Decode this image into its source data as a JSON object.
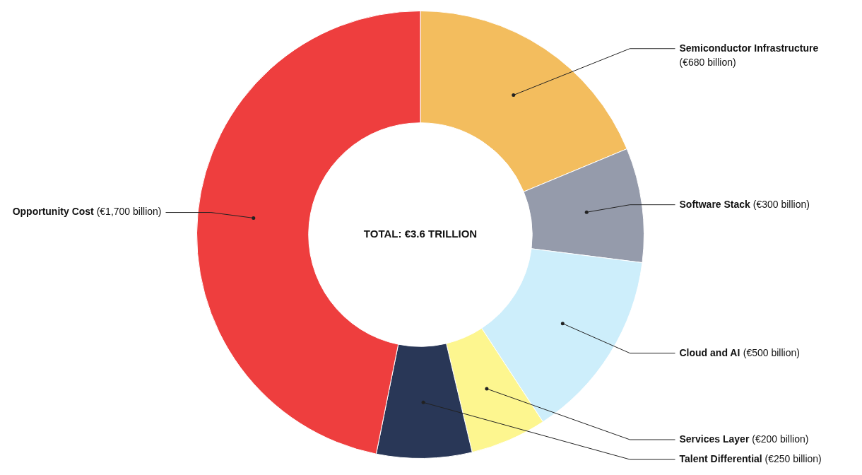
{
  "chart_data": {
    "type": "donut",
    "categories": [
      "Semiconductor Infrastructure",
      "Software Stack",
      "Cloud and AI",
      "Services Layer",
      "Talent Differential",
      "Opportunity Cost"
    ],
    "values": [
      680,
      300,
      500,
      200,
      250,
      1700
    ],
    "colors": [
      "#f3bd5e",
      "#959bab",
      "#cdeefb",
      "#fdf68f",
      "#293757",
      "#ee3e3e"
    ],
    "value_labels": [
      "(€680 billion)",
      "(€300 billion)",
      "(€500 billion)",
      "(€200 billion)",
      "(€250 billion)",
      "(€1,700 billion)"
    ],
    "annotations": [
      "TOTAL: €3.6 TRILLION"
    ]
  }
}
